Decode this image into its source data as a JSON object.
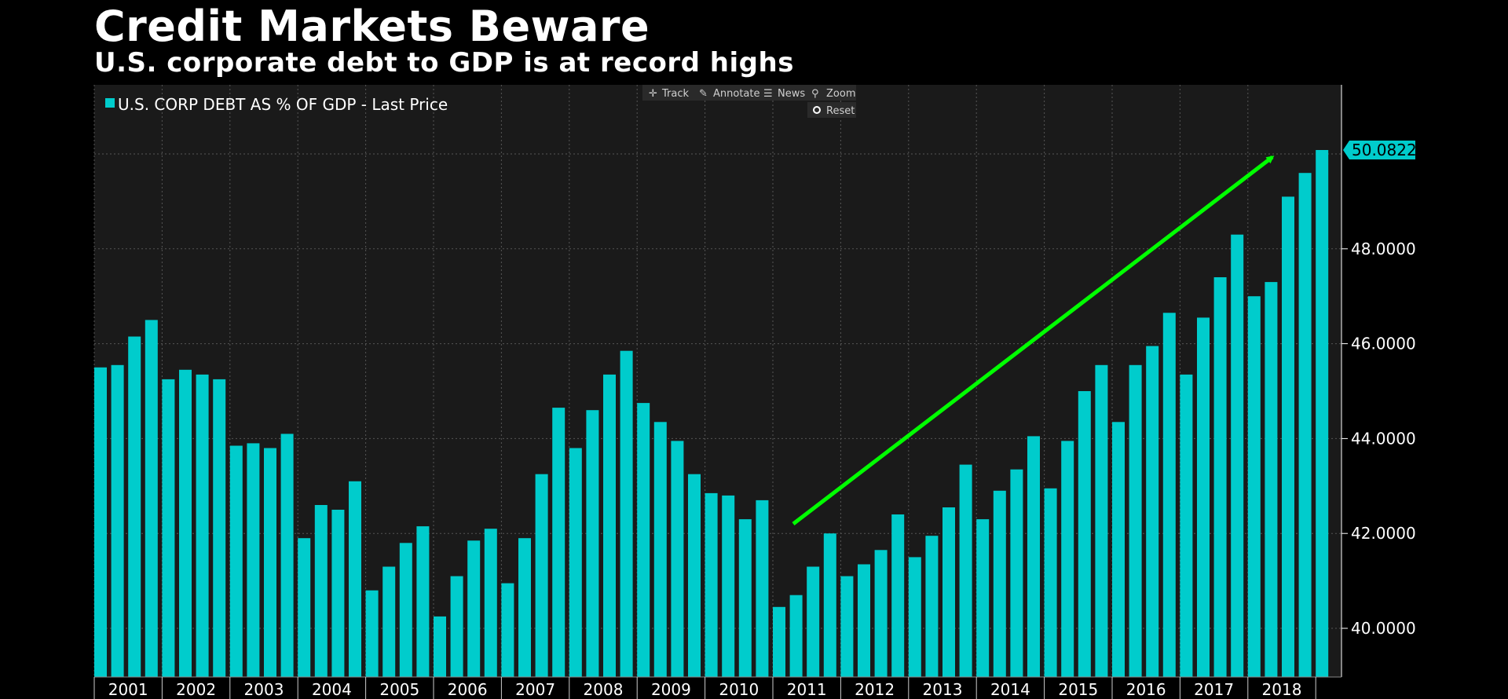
{
  "title": "Credit Markets Beware",
  "subtitle": "U.S. corporate debt to GDP is at record highs",
  "toolbar": {
    "track": "Track",
    "annotate": "Annotate",
    "news": "News",
    "zoom": "Zoom",
    "reset": "Reset"
  },
  "colors": {
    "background": "#000000",
    "plot_background": "#1a1a1a",
    "bar": "#00cccc",
    "arrow": "#00ff00",
    "grid": "#555555"
  },
  "chart_data": {
    "type": "bar",
    "title": "Credit Markets Beware",
    "subtitle": "U.S. corporate debt to GDP is at record highs",
    "legend": "U.S. CORP DEBT AS % OF GDP - Last Price",
    "legend_position": "top-left",
    "xlabel": "",
    "ylabel": "",
    "y_axis_side": "right",
    "ylim": [
      39.0,
      51.0
    ],
    "yticks": [
      "40.0000",
      "42.0000",
      "44.0000",
      "46.0000",
      "48.0000"
    ],
    "ytick_values": [
      40,
      42,
      44,
      46,
      48
    ],
    "x_year_labels": [
      "2001",
      "2002",
      "2003",
      "2004",
      "2005",
      "2006",
      "2007",
      "2008",
      "2009",
      "2010",
      "2011",
      "2012",
      "2013",
      "2014",
      "2015",
      "2016",
      "2017",
      "2018"
    ],
    "first_year": 2001,
    "bars_per_year": 4,
    "grid": true,
    "values": [
      45.5,
      45.55,
      46.15,
      46.5,
      45.25,
      45.45,
      45.35,
      45.25,
      43.85,
      43.9,
      43.8,
      44.1,
      41.9,
      42.6,
      42.5,
      43.1,
      40.8,
      41.3,
      41.8,
      42.15,
      40.25,
      41.1,
      41.85,
      42.1,
      40.95,
      41.9,
      43.25,
      44.65,
      43.8,
      44.6,
      45.35,
      45.85,
      44.75,
      44.35,
      43.95,
      43.25,
      42.85,
      42.8,
      42.3,
      42.7,
      40.45,
      40.7,
      41.3,
      42.0,
      41.1,
      41.35,
      41.65,
      42.4,
      41.5,
      41.95,
      42.55,
      43.45,
      42.3,
      42.9,
      43.35,
      44.05,
      42.95,
      43.95,
      45.0,
      45.55,
      44.35,
      45.55,
      45.95,
      46.65,
      45.35,
      46.55,
      47.4,
      48.3,
      47.0,
      47.3,
      49.1,
      49.6,
      50.0822
    ],
    "last_price": "50.0822",
    "annotation": "green arrow rising from 2011 to 2018"
  }
}
